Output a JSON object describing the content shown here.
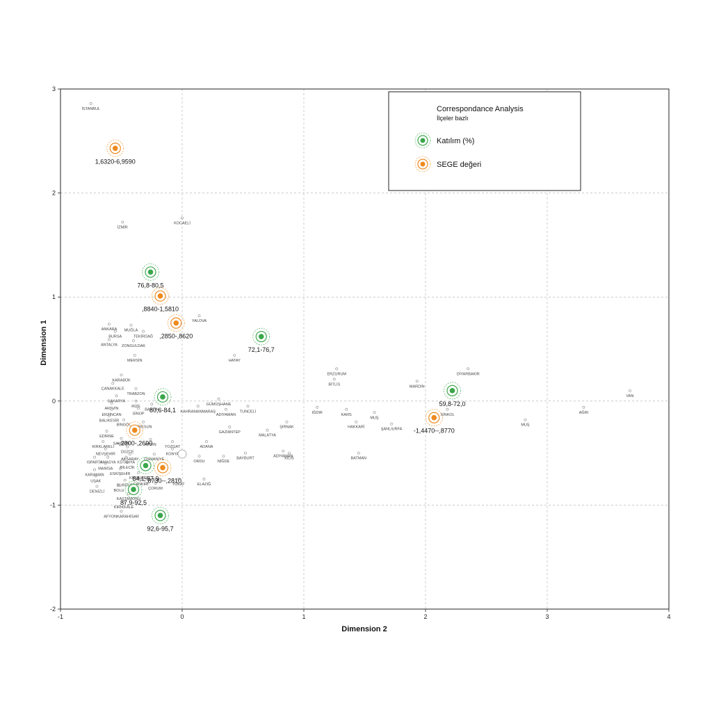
{
  "chart_data": {
    "type": "scatter",
    "xlabel": "Dimension 2",
    "ylabel": "Dimension 1",
    "xlim": [
      -1,
      4
    ],
    "ylim": [
      -2,
      3
    ],
    "xticks": [
      "-1",
      "0",
      "1",
      "2",
      "3",
      "4"
    ],
    "yticks": [
      "-2",
      "-1",
      "0",
      "1",
      "2",
      "3"
    ],
    "grid": true,
    "legend": {
      "placement": "top-right",
      "title": "Correspondance Analysis",
      "subtitle": "İlçeler bazlı",
      "items": [
        {
          "label": "Katılım (%)",
          "color": "#3aa64a"
        },
        {
          "label": "SEGE değeri",
          "color": "#ee8a1e"
        }
      ]
    },
    "colors": {
      "katilim": "#3aa64a",
      "sege": "#ee8a1e",
      "city": "#888888"
    },
    "series": [
      {
        "name": "Katılım (%)",
        "points": [
          {
            "x": -0.26,
            "y": 1.24,
            "label": "76,8-80,5"
          },
          {
            "x": 0.65,
            "y": 0.62,
            "label": "72,1-76,7"
          },
          {
            "x": -0.16,
            "y": 0.04,
            "label": "80,6-84,1"
          },
          {
            "x": 2.22,
            "y": 0.1,
            "label": "59,8-72,0"
          },
          {
            "x": -0.3,
            "y": -0.62,
            "label": "84,1-87,9"
          },
          {
            "x": -0.4,
            "y": -0.85,
            "label": "87,9-92,5"
          },
          {
            "x": -0.18,
            "y": -1.1,
            "label": "92,6-95,7"
          }
        ]
      },
      {
        "name": "SEGE değeri",
        "points": [
          {
            "x": -0.55,
            "y": 2.43,
            "label": "1,6320-6,9590"
          },
          {
            "x": -0.18,
            "y": 1.01,
            "label": ",8840-1,5810"
          },
          {
            "x": -0.05,
            "y": 0.75,
            "label": ",2850-,8620"
          },
          {
            "x": -0.39,
            "y": -0.28,
            "label": "-,2800-,2690"
          },
          {
            "x": -0.16,
            "y": -0.64,
            "label": "-,8730--,2810"
          },
          {
            "x": 2.07,
            "y": -0.16,
            "label": "-1,4470--,8770"
          }
        ]
      }
    ],
    "provinces": [
      {
        "x": -0.75,
        "y": 2.86,
        "label": "İSTANBUL"
      },
      {
        "x": -0.49,
        "y": 1.72,
        "label": "İZMİR"
      },
      {
        "x": 0.0,
        "y": 1.76,
        "label": "KOCAELİ"
      },
      {
        "x": 0.14,
        "y": 0.82,
        "label": "YALOVA"
      },
      {
        "x": -0.6,
        "y": 0.74,
        "label": "ANKARA"
      },
      {
        "x": -0.42,
        "y": 0.73,
        "label": "MUĞLA"
      },
      {
        "x": -0.55,
        "y": 0.67,
        "label": "BURSA"
      },
      {
        "x": -0.32,
        "y": 0.67,
        "label": "TEKİRDAĞ"
      },
      {
        "x": -0.6,
        "y": 0.59,
        "label": "ANTALYA"
      },
      {
        "x": -0.4,
        "y": 0.58,
        "label": "ZONGULDAK"
      },
      {
        "x": -0.39,
        "y": 0.44,
        "label": "MERSİN"
      },
      {
        "x": 0.43,
        "y": 0.44,
        "label": "HATAY"
      },
      {
        "x": -0.5,
        "y": 0.25,
        "label": "KARABÜK"
      },
      {
        "x": -0.57,
        "y": 0.17,
        "label": "ÇANAKKALE"
      },
      {
        "x": -0.38,
        "y": 0.12,
        "label": "TRABZON"
      },
      {
        "x": -0.54,
        "y": 0.05,
        "label": "SAKARYA"
      },
      {
        "x": -0.38,
        "y": 0.0,
        "label": "RİZE"
      },
      {
        "x": -0.25,
        "y": -0.03,
        "label": "BARTIN"
      },
      {
        "x": -0.58,
        "y": -0.02,
        "label": "ARTVİN"
      },
      {
        "x": -0.58,
        "y": -0.08,
        "label": "ERZİNCAN"
      },
      {
        "x": -0.36,
        "y": -0.07,
        "label": "SİNOP"
      },
      {
        "x": 0.13,
        "y": -0.05,
        "label": "KAHRAMANMARAŞ"
      },
      {
        "x": 0.3,
        "y": 0.02,
        "label": "GÜMÜŞHANE"
      },
      {
        "x": 0.54,
        "y": -0.05,
        "label": "TUNCELİ"
      },
      {
        "x": 0.36,
        "y": -0.08,
        "label": "ADIYAMAN"
      },
      {
        "x": -0.6,
        "y": -0.14,
        "label": "BALIKESİR"
      },
      {
        "x": -0.48,
        "y": -0.18,
        "label": "BİNGÖL"
      },
      {
        "x": -0.32,
        "y": -0.2,
        "label": "GİRESUN"
      },
      {
        "x": 0.39,
        "y": -0.25,
        "label": "GAZİANTEP"
      },
      {
        "x": 0.7,
        "y": -0.28,
        "label": "MALATYA"
      },
      {
        "x": 0.86,
        "y": -0.2,
        "label": "ŞIRNAK"
      },
      {
        "x": -0.62,
        "y": -0.29,
        "label": "EDİRNE"
      },
      {
        "x": -0.5,
        "y": -0.36,
        "label": "SAMSUN"
      },
      {
        "x": -0.26,
        "y": -0.37,
        "label": "AYDIN"
      },
      {
        "x": -0.08,
        "y": -0.39,
        "label": "YOZGAT"
      },
      {
        "x": 0.2,
        "y": -0.39,
        "label": "ADANA"
      },
      {
        "x": -0.65,
        "y": -0.39,
        "label": "KIRKLARELİ"
      },
      {
        "x": -0.45,
        "y": -0.44,
        "label": "DÜZCE"
      },
      {
        "x": -0.08,
        "y": -0.46,
        "label": "KONYA"
      },
      {
        "x": -0.63,
        "y": -0.46,
        "label": "NEVŞEHİR"
      },
      {
        "x": -0.23,
        "y": -0.51,
        "label": "OSMANİYE"
      },
      {
        "x": -0.43,
        "y": -0.51,
        "label": "AKSARAY"
      },
      {
        "x": 0.83,
        "y": -0.48,
        "label": "ADIYAMAN"
      },
      {
        "x": 0.52,
        "y": -0.5,
        "label": "BAYBURT"
      },
      {
        "x": 0.88,
        "y": -0.5,
        "label": "KİLİS"
      },
      {
        "x": 0.14,
        "y": -0.53,
        "label": "ORDU"
      },
      {
        "x": 0.34,
        "y": -0.53,
        "label": "NİĞDE"
      },
      {
        "x": -0.72,
        "y": -0.54,
        "label": "ISPARTA"
      },
      {
        "x": -0.61,
        "y": -0.54,
        "label": "AMASYA"
      },
      {
        "x": -0.46,
        "y": -0.54,
        "label": "KÜTAHYA"
      },
      {
        "x": -0.45,
        "y": -0.59,
        "label": "BİLECİK"
      },
      {
        "x": -0.63,
        "y": -0.6,
        "label": "MANİSA"
      },
      {
        "x": -0.51,
        "y": -0.65,
        "label": "ESKİŞEHİR"
      },
      {
        "x": -0.72,
        "y": -0.66,
        "label": "KARAMAN"
      },
      {
        "x": -0.36,
        "y": -0.69,
        "label": "KIRŞEHİR"
      },
      {
        "x": -0.71,
        "y": -0.72,
        "label": "UŞAK"
      },
      {
        "x": -0.34,
        "y": -0.75,
        "label": "ÇANKIRI"
      },
      {
        "x": -0.03,
        "y": -0.75,
        "label": "TOKAT"
      },
      {
        "x": -0.47,
        "y": -0.76,
        "label": "BURDUR"
      },
      {
        "x": 0.18,
        "y": -0.75,
        "label": "ELAZIĞ"
      },
      {
        "x": -0.22,
        "y": -0.79,
        "label": "ÇORUM"
      },
      {
        "x": -0.52,
        "y": -0.81,
        "label": "BOLU"
      },
      {
        "x": -0.7,
        "y": -0.82,
        "label": "DENİZLİ"
      },
      {
        "x": -0.44,
        "y": -0.89,
        "label": "KASTAMONU"
      },
      {
        "x": -0.48,
        "y": -0.97,
        "label": "KIRIKKALE"
      },
      {
        "x": -0.5,
        "y": -1.06,
        "label": "AFYONKARAHİSAR"
      },
      {
        "x": 1.11,
        "y": -0.06,
        "label": "IĞDIR"
      },
      {
        "x": 1.27,
        "y": 0.31,
        "label": "ERZURUM"
      },
      {
        "x": 1.25,
        "y": 0.21,
        "label": "BİTLİS"
      },
      {
        "x": 1.35,
        "y": -0.08,
        "label": "KARS"
      },
      {
        "x": 1.58,
        "y": -0.11,
        "label": "MUŞ"
      },
      {
        "x": 1.43,
        "y": -0.2,
        "label": "HAKKARİ"
      },
      {
        "x": 1.72,
        "y": -0.22,
        "label": "ŞANLIURFA"
      },
      {
        "x": 1.45,
        "y": -0.5,
        "label": "BATMAN"
      },
      {
        "x": 1.93,
        "y": 0.19,
        "label": "MARDİN"
      },
      {
        "x": 2.35,
        "y": 0.31,
        "label": "DİYARBAKIR"
      },
      {
        "x": 2.18,
        "y": -0.08,
        "label": "SİNKOL"
      },
      {
        "x": 2.82,
        "y": -0.18,
        "label": "MUŞ"
      },
      {
        "x": 3.3,
        "y": -0.06,
        "label": "AĞRI"
      },
      {
        "x": 3.68,
        "y": 0.1,
        "label": "VAN"
      }
    ]
  }
}
